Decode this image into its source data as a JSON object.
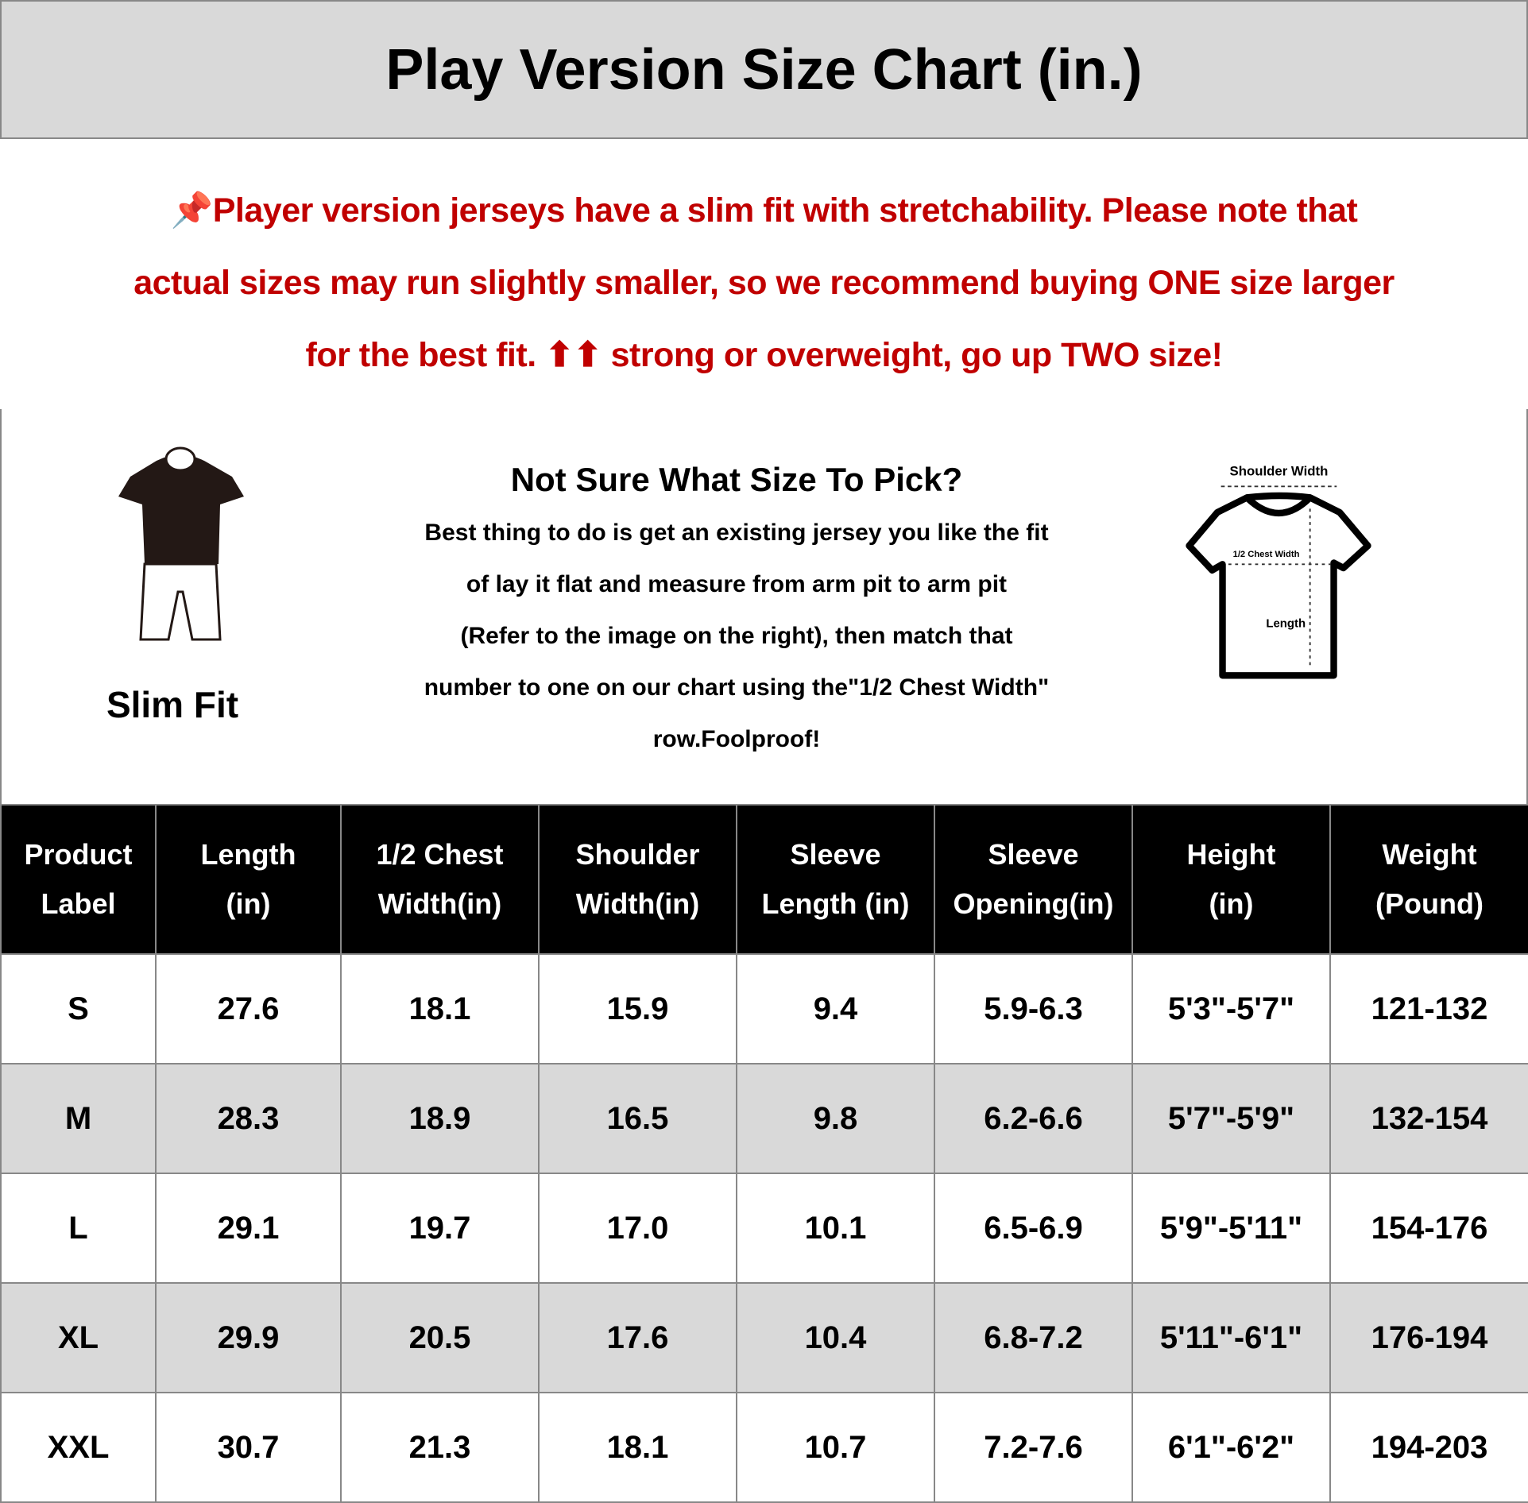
{
  "title": "Play Version Size Chart (in.)",
  "note": {
    "icon": "pushpin-icon",
    "line1": "Player version jerseys have a slim fit with stretchability. Please note that",
    "line2": "actual sizes may run slightly smaller, so we recommend buying ONE size larger",
    "line3a": "for the best fit.",
    "line3b": "strong or overweight, go up TWO size!",
    "color": "#c00000"
  },
  "slim_fit": {
    "label": "Slim Fit",
    "icon": "mannequin-icon"
  },
  "advice": {
    "heading": "Not Sure What Size To Pick?",
    "lines": [
      "Best thing to do is get an existing jersey you like the fit",
      "of lay it flat and measure from arm pit to arm pit",
      "(Refer to the image on the right), then match that",
      "number to one on our chart using the\"1/2 Chest Width\"",
      "row.Foolproof!"
    ]
  },
  "diagram": {
    "shoulder": "Shoulder Width",
    "chest": "1/2 Chest Width",
    "length": "Length"
  },
  "table": {
    "headers": [
      [
        "Product",
        "Label"
      ],
      [
        "Length",
        "(in)"
      ],
      [
        "1/2 Chest",
        "Width(in)"
      ],
      [
        "Shoulder",
        "Width(in)"
      ],
      [
        "Sleeve",
        "Length (in)"
      ],
      [
        "Sleeve",
        "Opening(in)"
      ],
      [
        "Height",
        "(in)"
      ],
      [
        "Weight",
        "(Pound)"
      ]
    ],
    "rows": [
      [
        "S",
        "27.6",
        "18.1",
        "15.9",
        "9.4",
        "5.9-6.3",
        "5'3\"-5'7\"",
        "121-132"
      ],
      [
        "M",
        "28.3",
        "18.9",
        "16.5",
        "9.8",
        "6.2-6.6",
        "5'7\"-5'9\"",
        "132-154"
      ],
      [
        "L",
        "29.1",
        "19.7",
        "17.0",
        "10.1",
        "6.5-6.9",
        "5'9\"-5'11\"",
        "154-176"
      ],
      [
        "XL",
        "29.9",
        "20.5",
        "17.6",
        "10.4",
        "6.8-7.2",
        "5'11\"-6'1\"",
        "176-194"
      ],
      [
        "XXL",
        "30.7",
        "21.3",
        "18.1",
        "10.7",
        "7.2-7.6",
        "6'1\"-6'2\"",
        "194-203"
      ]
    ]
  }
}
